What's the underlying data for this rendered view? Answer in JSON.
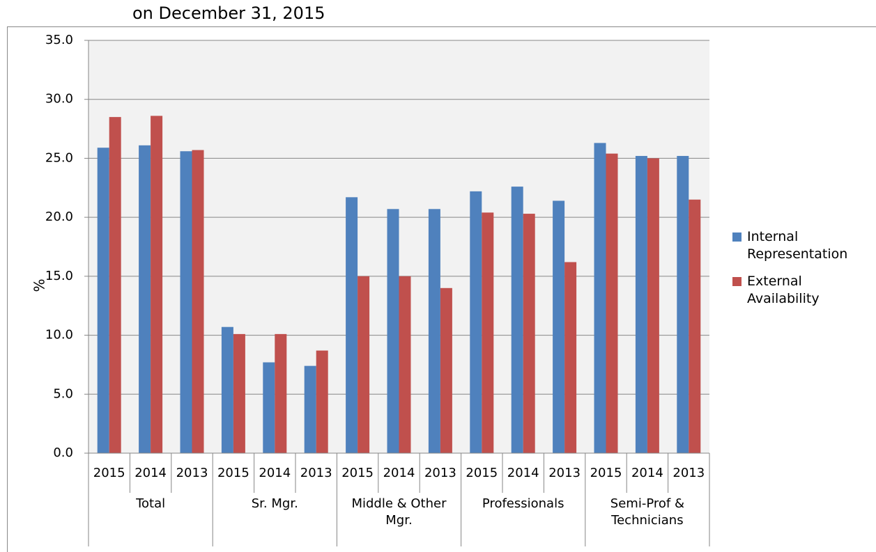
{
  "chart_data": {
    "type": "bar",
    "title": "on December 31, 2015",
    "y_label": "%",
    "categories": [
      "2015",
      "2014",
      "2013",
      "2015",
      "2014",
      "2013",
      "2015",
      "2014",
      "2013",
      "2015",
      "2014",
      "2013",
      "2015",
      "2014",
      "2013"
    ],
    "groups": [
      "Total",
      "Sr. Mgr.",
      "Middle & Other Mgr.",
      "Professionals",
      "Semi-Prof & Technicians"
    ],
    "series": [
      {
        "name": "Internal Representation",
        "color": "#4f81bd",
        "values": [
          25.9,
          26.1,
          25.6,
          10.7,
          7.7,
          7.4,
          21.7,
          20.7,
          20.7,
          22.2,
          22.6,
          21.4,
          26.3,
          25.2,
          25.2
        ]
      },
      {
        "name": "External Availability",
        "color": "#c0504d",
        "values": [
          28.5,
          28.6,
          25.7,
          10.1,
          10.1,
          8.7,
          15.0,
          15.0,
          14.0,
          20.4,
          20.3,
          16.2,
          25.4,
          25.0,
          21.5
        ]
      }
    ],
    "ylim": [
      0,
      35
    ],
    "yticks": [
      {
        "value": 0,
        "label": "0.0"
      },
      {
        "value": 5,
        "label": "5.0"
      },
      {
        "value": 10,
        "label": "10.0"
      },
      {
        "value": 15,
        "label": "15.0"
      },
      {
        "value": 20,
        "label": "20.0"
      },
      {
        "value": 25,
        "label": "25.0"
      },
      {
        "value": 30,
        "label": "30.0"
      },
      {
        "value": 35,
        "label": "35.0"
      }
    ],
    "grid": true,
    "legend": "right"
  }
}
